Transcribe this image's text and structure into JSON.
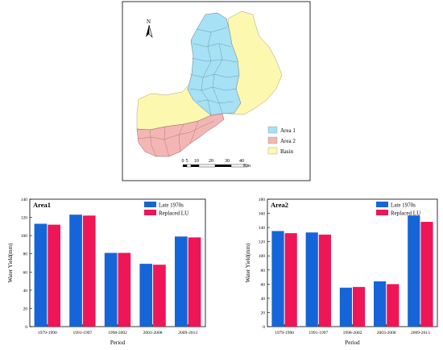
{
  "map": {
    "north_label": "N",
    "legend": [
      {
        "label": "Area 1",
        "color": "#a6e1f5"
      },
      {
        "label": "Area 2",
        "color": "#f4b6b4"
      },
      {
        "label": "Basin",
        "color": "#fdf8b0"
      }
    ],
    "scale_labels": [
      "0",
      "5",
      "10",
      "20",
      "30",
      "40"
    ],
    "scale_unit": "Km"
  },
  "colors": {
    "series1": "#1565d8",
    "series2": "#ee1656"
  },
  "chart_data": [
    {
      "type": "bar",
      "title": "Area1",
      "xlabel": "Period",
      "ylabel": "Water Yield(mm)",
      "categories": [
        "1979-1990",
        "1991-1997",
        "1998-2002",
        "2003-2008",
        "2009-2013"
      ],
      "series": [
        {
          "name": "Late 1970s",
          "values": [
            113,
            123,
            81,
            69,
            99
          ]
        },
        {
          "name": "Replaced LU",
          "values": [
            112,
            122,
            81,
            68,
            98
          ]
        }
      ],
      "ylim": [
        0,
        140
      ],
      "yticks": [
        "0",
        "20",
        "40",
        "60",
        "80",
        "100",
        "120",
        "140"
      ],
      "legend_position": "top-right"
    },
    {
      "type": "bar",
      "title": "Area2",
      "xlabel": "Period",
      "ylabel": "Water Yield(mm)",
      "categories": [
        "1979-1990",
        "1991-1997",
        "1998-2002",
        "2003-2008",
        "2009-2013"
      ],
      "series": [
        {
          "name": "Late 1970s",
          "values": [
            135,
            133,
            55,
            64,
            157
          ]
        },
        {
          "name": "Replaced LU",
          "values": [
            132,
            130,
            56,
            60,
            148
          ]
        }
      ],
      "ylim": [
        0,
        180
      ],
      "yticks": [
        "0",
        "20",
        "40",
        "60",
        "80",
        "100",
        "120",
        "140",
        "160",
        "180"
      ],
      "legend_position": "top-right"
    }
  ]
}
